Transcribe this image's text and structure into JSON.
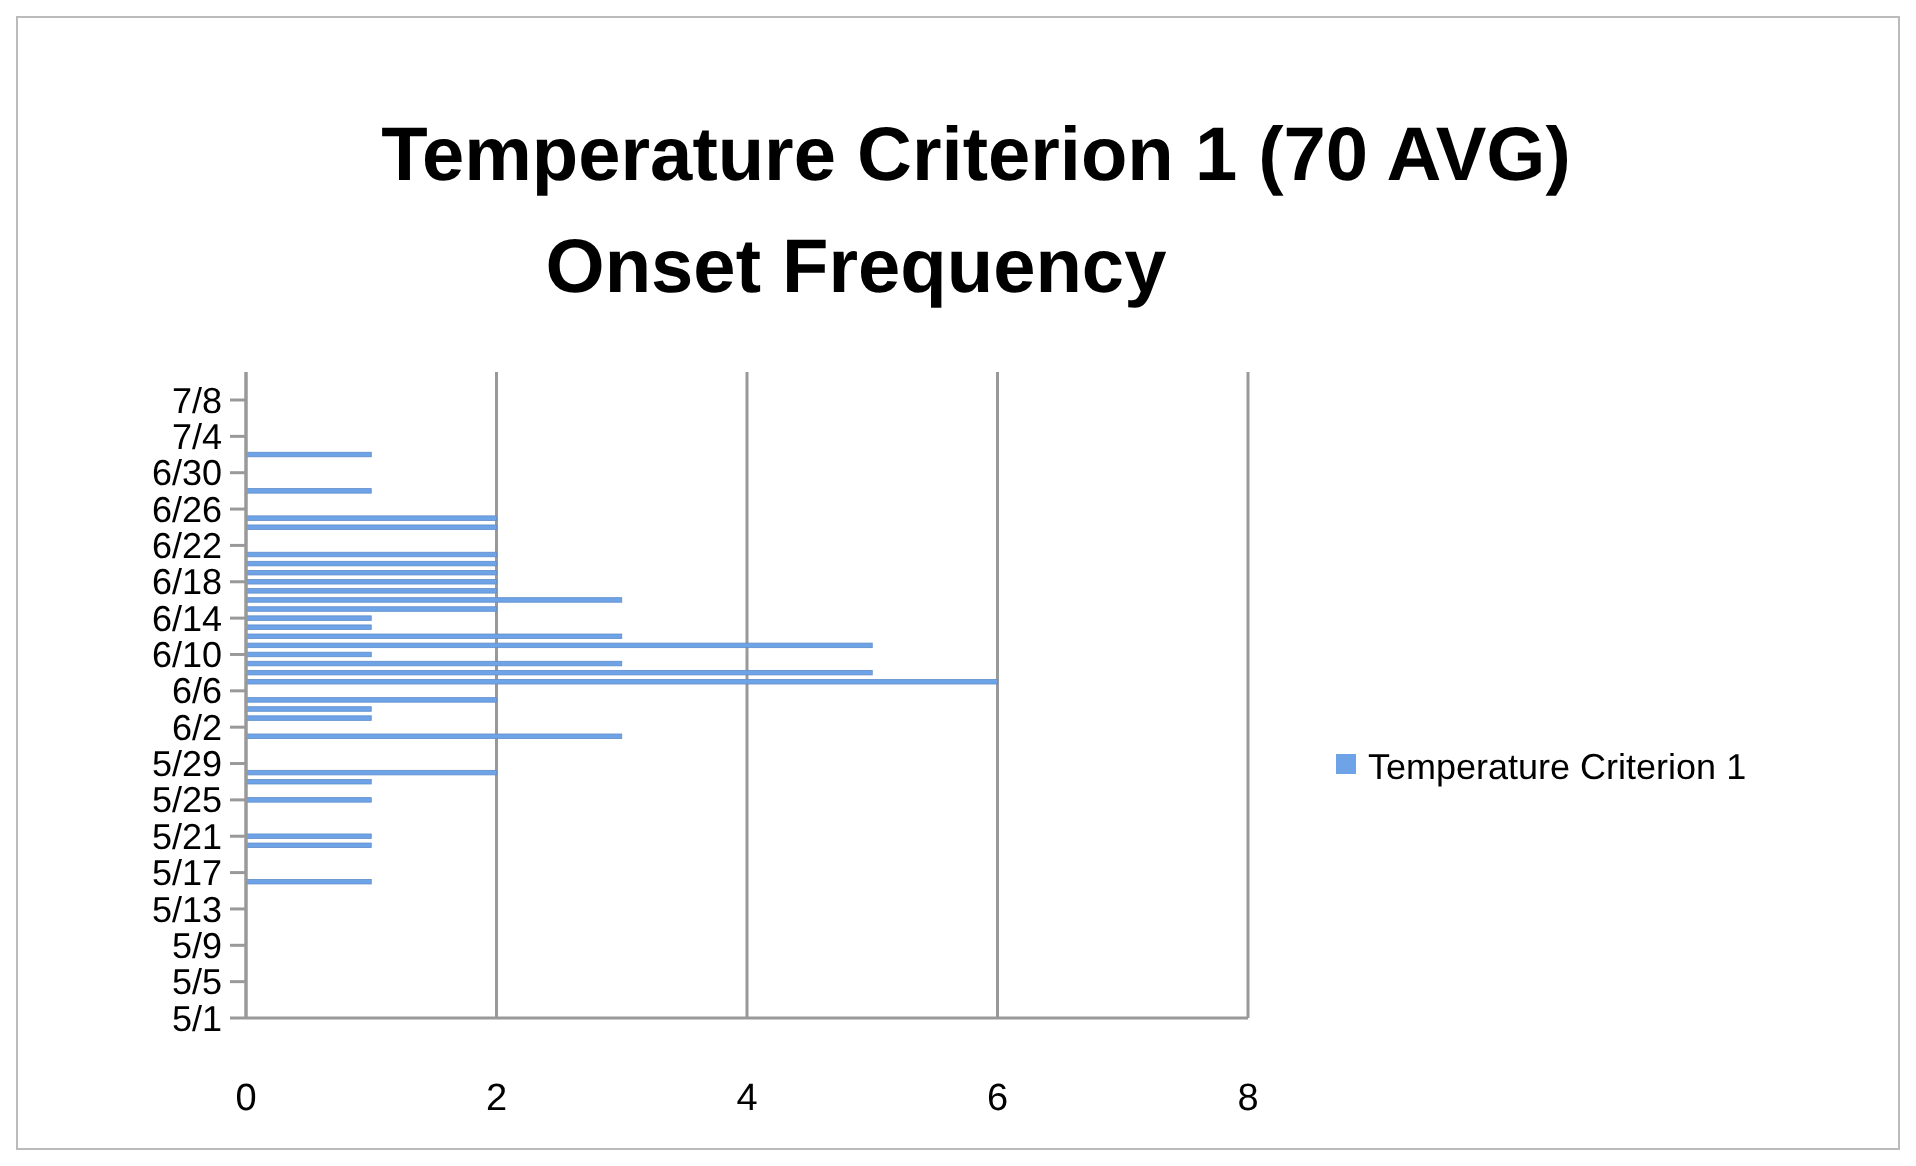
{
  "chart_data": {
    "type": "bar",
    "orientation": "horizontal",
    "title": "Temperature Criterion 1 (70 AVG)",
    "subtitle": "Onset Frequency",
    "categories": [
      "7/8",
      null,
      null,
      null,
      "7/4",
      null,
      null,
      null,
      "6/30",
      null,
      null,
      null,
      "6/26",
      null,
      null,
      null,
      "6/22",
      null,
      null,
      null,
      "6/18",
      null,
      null,
      null,
      "6/14",
      null,
      null,
      null,
      "6/10",
      null,
      null,
      null,
      "6/6",
      null,
      null,
      null,
      "6/2",
      null,
      null,
      null,
      "5/29",
      null,
      null,
      null,
      "5/25",
      null,
      null,
      null,
      "5/21",
      null,
      null,
      null,
      "5/17",
      null,
      null,
      null,
      "5/13",
      null,
      null,
      null,
      "5/9",
      null,
      null,
      null,
      "5/5",
      null,
      null,
      null,
      "5/1"
    ],
    "series": [
      {
        "name": "Temperature Criterion 1",
        "color": "#6ea3e8",
        "values": [
          0,
          0,
          0,
          0,
          0,
          0,
          1,
          0,
          0,
          0,
          1,
          0,
          0,
          2,
          2,
          0,
          0,
          2,
          2,
          2,
          2,
          2,
          3,
          2,
          1,
          1,
          3,
          5,
          1,
          3,
          5,
          6,
          0,
          2,
          1,
          1,
          0,
          3,
          0,
          0,
          0,
          2,
          1,
          0,
          1,
          0,
          0,
          0,
          1,
          1,
          0,
          0,
          0,
          1,
          0,
          0,
          0,
          0,
          0,
          0,
          0,
          0,
          0,
          0,
          0,
          0,
          0,
          0,
          0
        ]
      }
    ],
    "xlim": [
      0,
      8
    ],
    "xticks": [
      0,
      2,
      4,
      6,
      8
    ],
    "grid": "x",
    "legend": "right"
  }
}
